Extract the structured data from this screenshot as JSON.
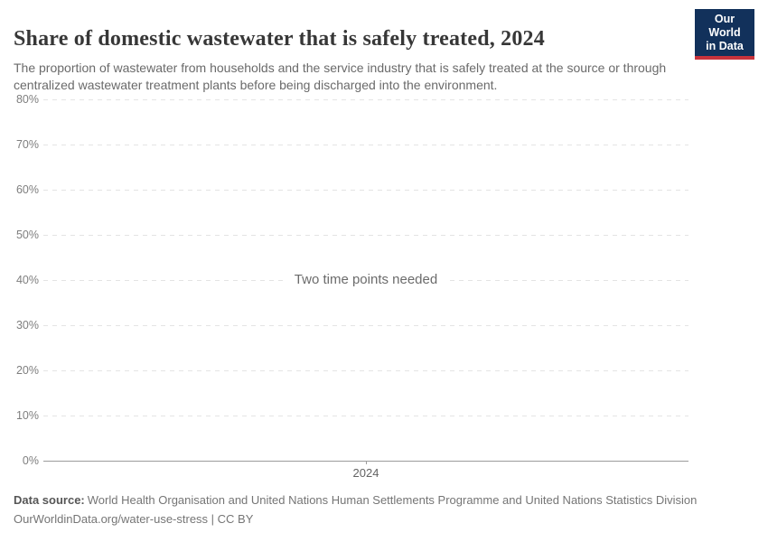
{
  "header": {
    "title": "Share of domestic wastewater that is safely treated, 2024",
    "subtitle": "The proportion of wastewater from households and the service industry that is safely treated at the source or through centralized wastewater treatment plants before being discharged into the environment.",
    "logo": {
      "line1": "Our World",
      "line2": "in Data"
    }
  },
  "chart_data": {
    "type": "line",
    "title": "Share of domestic wastewater that is safely treated, 2024",
    "series": [],
    "message": "Two time points needed",
    "xticks": [
      "2024"
    ],
    "yticks_top_to_bottom": [
      "80%",
      "70%",
      "60%",
      "50%",
      "40%",
      "30%",
      "20%",
      "10%",
      "0%"
    ],
    "ylim": [
      0,
      80
    ],
    "xlabel": "",
    "ylabel": "",
    "legend": "none",
    "grid": "horizontal-dashed"
  },
  "footer": {
    "datasource_label": "Data source:",
    "datasource_text": "World Health Organisation and United Nations Human Settlements Programme and United Nations Statistics Division",
    "license_line": "OurWorldinData.org/water-use-stress | CC BY"
  },
  "colors": {
    "logo_bg": "#12315b",
    "logo_stripe": "#c8333c",
    "gridline": "#e4e4e4",
    "axis": "#9c9c9c",
    "title_text": "#373737",
    "muted_text": "#757575"
  }
}
